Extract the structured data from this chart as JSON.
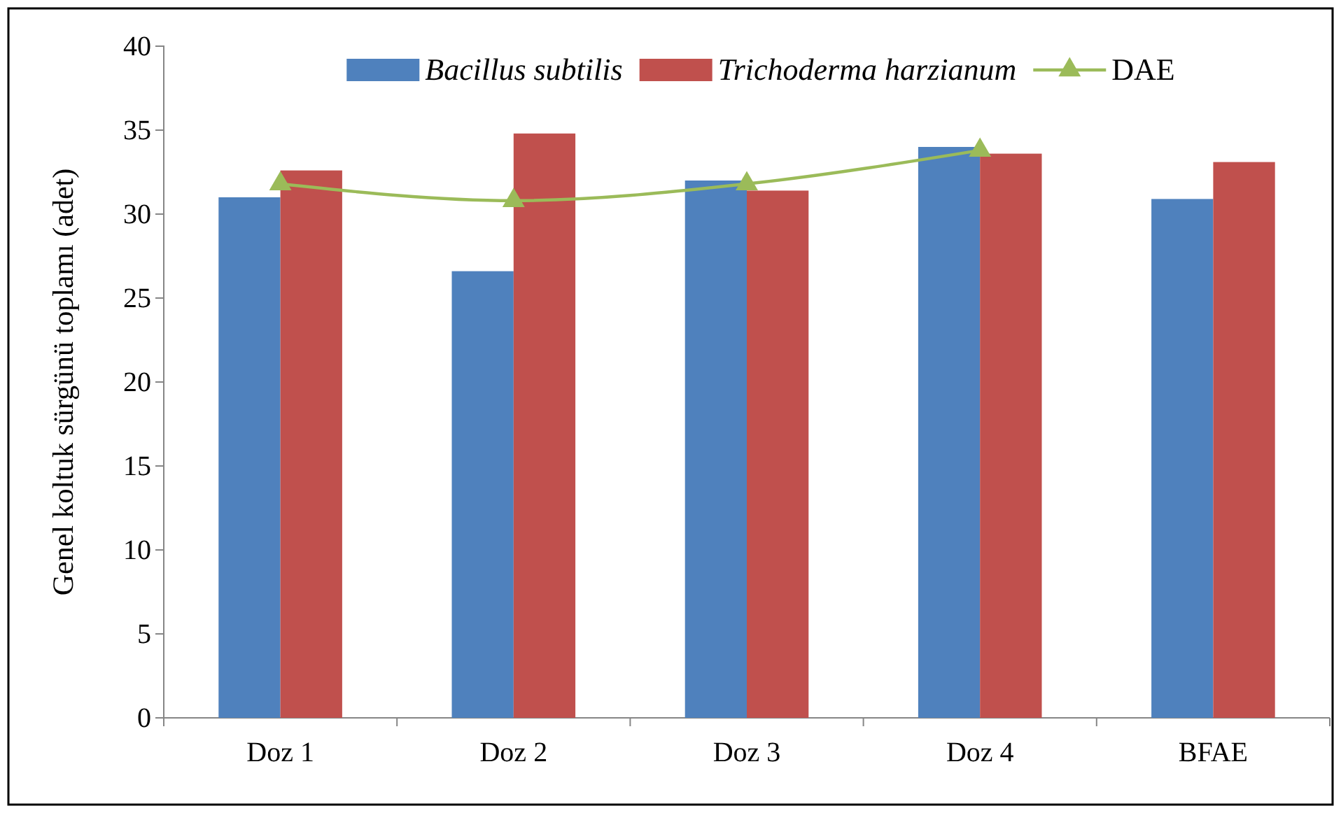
{
  "chart_data": {
    "type": "bar",
    "ylabel": "Genel koltuk sürgünü toplamı (adet)",
    "categories": [
      "Doz 1",
      "Doz 2",
      "Doz 3",
      "Doz 4",
      "BFAE"
    ],
    "series": [
      {
        "name": "Bacillus subtilis",
        "color": "#4f81bd",
        "values": [
          31.0,
          26.6,
          32.0,
          34.0,
          30.9
        ]
      },
      {
        "name": "Trichoderma harzianum",
        "color": "#c0504d",
        "values": [
          32.6,
          34.8,
          31.4,
          33.6,
          33.1
        ]
      },
      {
        "name": "DAE",
        "type": "line",
        "color": "#9bbb59",
        "marker": "triangle",
        "values": [
          31.8,
          30.8,
          31.8,
          33.8,
          null
        ]
      }
    ],
    "ylim": [
      0,
      40
    ],
    "yticks": [
      0,
      5,
      10,
      15,
      20,
      25,
      30,
      35,
      40
    ],
    "legend": "top",
    "grid": false
  }
}
